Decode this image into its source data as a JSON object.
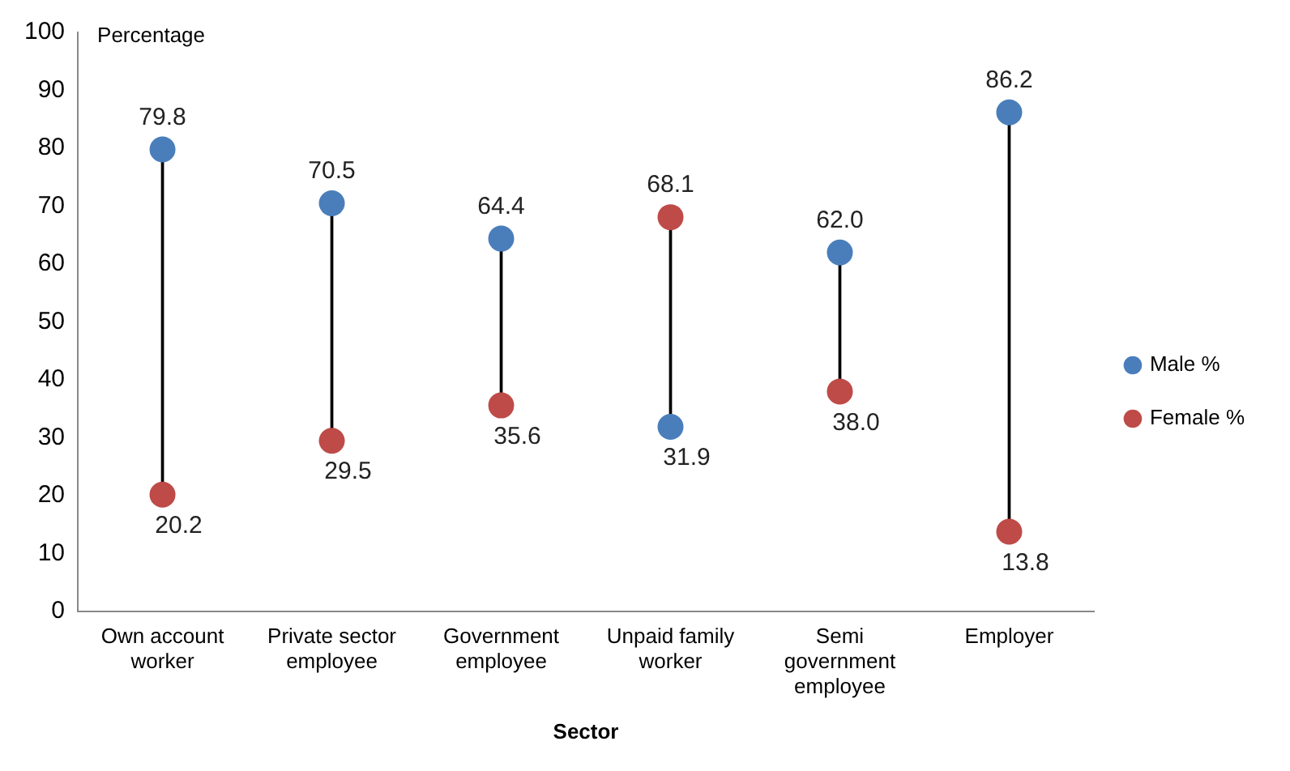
{
  "chart_data": {
    "type": "scatter",
    "ylabel": "Percentage",
    "xlabel": "Sector",
    "categories": [
      "Own account worker",
      "Private sector employee",
      "Government employee",
      "Unpaid family worker",
      "Semi government employee",
      "Employer"
    ],
    "series": [
      {
        "name": "Male %",
        "color": "#4a7ebb",
        "values": [
          79.8,
          70.5,
          64.4,
          31.9,
          62.0,
          86.2
        ],
        "value_labels": [
          "79.8",
          "70.5",
          "64.4",
          "31.9",
          "62.0",
          "86.2"
        ]
      },
      {
        "name": "Female %",
        "color": "#be4b48",
        "values": [
          20.2,
          29.5,
          35.6,
          68.1,
          38.0,
          13.8
        ],
        "value_labels": [
          "20.2",
          "29.5",
          "35.6",
          "68.1",
          "38.0",
          "13.8"
        ]
      }
    ],
    "ylim": [
      0,
      100
    ],
    "yticks": [
      0,
      10,
      20,
      30,
      40,
      50,
      60,
      70,
      80,
      90,
      100
    ],
    "grid": false,
    "legend": "right",
    "marker": "circle"
  }
}
